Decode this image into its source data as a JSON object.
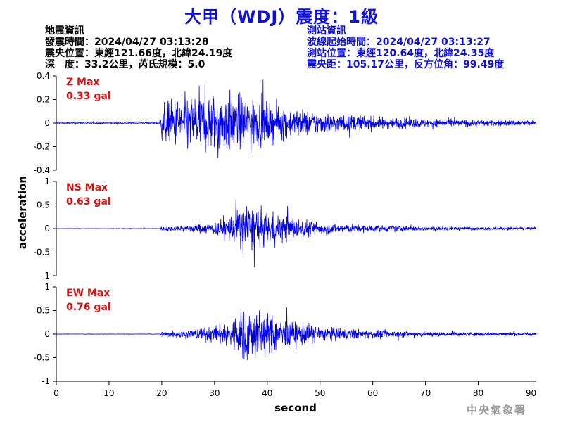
{
  "title": "大甲（WDJ）震度：1級",
  "quake_info": {
    "heading": "地震資訊",
    "time": "發震時間：2024/04/27 03:13:28",
    "epicenter": "震央位置：東經121.66度，北緯24.19度",
    "depth_magnitude": "深　度：33.2公里，芮氏規模：5.0"
  },
  "station_info": {
    "heading": "測站資訊",
    "wave_start": "波線起始時間：2024/04/27 03:13:27",
    "location": "測站位置：東經120.64度，北緯24.35度",
    "distance": "震央距：105.17公里，反方位角：99.49度"
  },
  "credit": "中央氣象署",
  "colors": {
    "title": "#1010dd",
    "trace": "#0000ee",
    "max_label": "#dd1111",
    "credit": "#9a9a9a"
  },
  "chart_data": {
    "type": "line",
    "xlabel": "second",
    "ylabel": "acceleration",
    "xlim": [
      0,
      91
    ],
    "x_ticks": [
      0,
      10,
      20,
      30,
      40,
      50,
      60,
      70,
      80,
      90
    ],
    "panels": [
      {
        "name": "Z",
        "max_label": "Z Max",
        "max_value": "0.33 gal",
        "ylim": [
          -0.4,
          0.4
        ],
        "y_ticks": [
          -0.4,
          -0.2,
          0,
          0.2,
          0.4
        ],
        "y_tick_labels": [
          "-0.4",
          "-0.2",
          "0",
          "0.2",
          "0.4"
        ],
        "envelope": [
          [
            0,
            0.006
          ],
          [
            19.5,
            0.006
          ],
          [
            20,
            0.14
          ],
          [
            21,
            0.2
          ],
          [
            24,
            0.24
          ],
          [
            27,
            0.26
          ],
          [
            32,
            0.28
          ],
          [
            36,
            0.24
          ],
          [
            40,
            0.18
          ],
          [
            45,
            0.13
          ],
          [
            50,
            0.1
          ],
          [
            55,
            0.08
          ],
          [
            60,
            0.06
          ],
          [
            70,
            0.04
          ],
          [
            80,
            0.03
          ],
          [
            91,
            0.025
          ]
        ]
      },
      {
        "name": "NS",
        "max_label": "NS Max",
        "max_value": "0.63 gal",
        "ylim": [
          -1,
          1
        ],
        "y_ticks": [
          -1,
          -0.5,
          0,
          0.5,
          1
        ],
        "y_tick_labels": [
          "-1",
          "-0.5",
          "0",
          "0.5",
          "1"
        ],
        "envelope": [
          [
            0,
            0.004
          ],
          [
            19.5,
            0.004
          ],
          [
            20,
            0.05
          ],
          [
            25,
            0.07
          ],
          [
            30,
            0.14
          ],
          [
            33,
            0.3
          ],
          [
            35,
            0.5
          ],
          [
            36,
            0.6
          ],
          [
            38,
            0.42
          ],
          [
            41,
            0.36
          ],
          [
            45,
            0.26
          ],
          [
            50,
            0.14
          ],
          [
            55,
            0.1
          ],
          [
            60,
            0.08
          ],
          [
            70,
            0.05
          ],
          [
            80,
            0.03
          ],
          [
            91,
            0.03
          ]
        ]
      },
      {
        "name": "EW",
        "max_label": "EW Max",
        "max_value": "0.76 gal",
        "ylim": [
          -1,
          1
        ],
        "y_ticks": [
          -1,
          -0.5,
          0,
          0.5,
          1
        ],
        "y_tick_labels": [
          "-1",
          "-0.5",
          "0",
          "0.5",
          "1"
        ],
        "envelope": [
          [
            0,
            0.004
          ],
          [
            19.5,
            0.004
          ],
          [
            20,
            0.07
          ],
          [
            25,
            0.1
          ],
          [
            30,
            0.18
          ],
          [
            33,
            0.32
          ],
          [
            35,
            0.55
          ],
          [
            36,
            0.72
          ],
          [
            38,
            0.55
          ],
          [
            41,
            0.4
          ],
          [
            45,
            0.3
          ],
          [
            50,
            0.18
          ],
          [
            55,
            0.12
          ],
          [
            60,
            0.09
          ],
          [
            70,
            0.06
          ],
          [
            80,
            0.04
          ],
          [
            91,
            0.04
          ]
        ]
      }
    ]
  }
}
